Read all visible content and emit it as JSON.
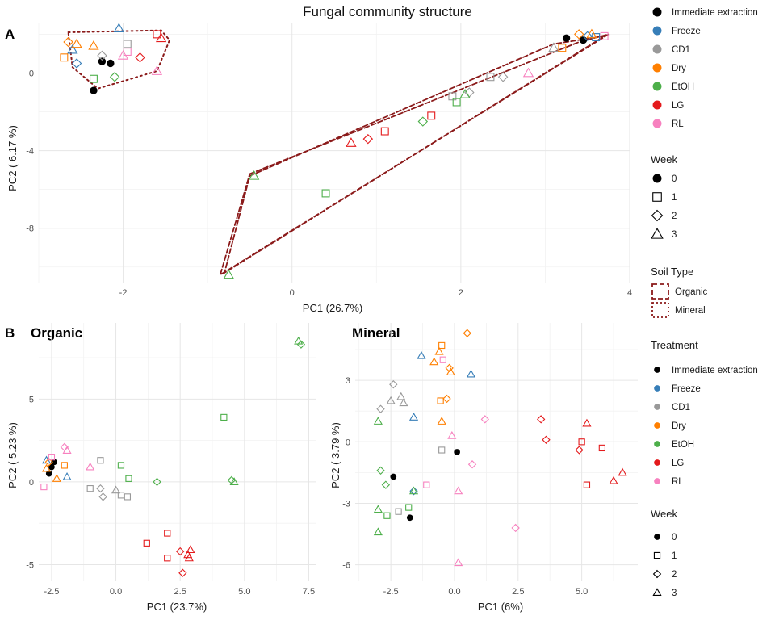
{
  "chart_data": [
    {
      "panel": "A",
      "type": "scatter",
      "title": "Fungal community structure",
      "xlabel": "PC1 (26.7%)",
      "ylabel": "PC2  ( 6.17 %)",
      "xlim": [
        -3.0,
        4.0
      ],
      "ylim": [
        -10.8,
        2.6
      ],
      "xticks": [
        -2,
        0,
        2,
        4
      ],
      "yticks": [
        0,
        -4,
        -8
      ],
      "hulls": [
        {
          "soil": "Mineral",
          "style": "dotted",
          "points": [
            [
              -2.65,
              2.1
            ],
            [
              -1.55,
              2.2
            ],
            [
              -1.45,
              1.7
            ],
            [
              -1.6,
              0.1
            ],
            [
              -2.3,
              -0.8
            ],
            [
              -2.6,
              0.3
            ]
          ]
        },
        {
          "soil": "Organic",
          "style": "dashed",
          "points": [
            [
              -0.5,
              -5.2
            ],
            [
              3.4,
              1.6
            ],
            [
              3.75,
              2.0
            ],
            [
              -0.85,
              -10.4
            ]
          ]
        },
        {
          "soil": "Organic",
          "style": "dashed",
          "points": [
            [
              -0.5,
              -5.3
            ],
            [
              3.1,
              1.5
            ],
            [
              3.7,
              1.9
            ],
            [
              -0.8,
              -10.3
            ]
          ]
        }
      ],
      "points": [
        {
          "x": 3.25,
          "y": 1.8,
          "t": "Immediate extraction",
          "w": 0
        },
        {
          "x": 3.45,
          "y": 1.7,
          "t": "Immediate extraction",
          "w": 0
        },
        {
          "x": -2.25,
          "y": 0.6,
          "t": "Immediate extraction",
          "w": 0
        },
        {
          "x": -2.15,
          "y": 0.5,
          "t": "Immediate extraction",
          "w": 0
        },
        {
          "x": -2.35,
          "y": -0.9,
          "t": "Immediate extraction",
          "w": 0
        },
        {
          "x": 3.5,
          "y": 1.9,
          "t": "Freeze",
          "w": 2
        },
        {
          "x": 3.6,
          "y": 1.85,
          "t": "Freeze",
          "w": 1
        },
        {
          "x": -2.05,
          "y": 2.3,
          "t": "Freeze",
          "w": 3
        },
        {
          "x": -2.55,
          "y": 0.5,
          "t": "Freeze",
          "w": 2
        },
        {
          "x": -2.6,
          "y": 1.2,
          "t": "Freeze",
          "w": 3
        },
        {
          "x": 2.35,
          "y": -0.2,
          "t": "CD1",
          "w": 1
        },
        {
          "x": 2.5,
          "y": -0.2,
          "t": "CD1",
          "w": 2
        },
        {
          "x": 1.9,
          "y": -1.2,
          "t": "CD1",
          "w": 1
        },
        {
          "x": 2.1,
          "y": -1.0,
          "t": "CD1",
          "w": 2
        },
        {
          "x": 3.1,
          "y": 1.3,
          "t": "CD1",
          "w": 3
        },
        {
          "x": -1.95,
          "y": 1.5,
          "t": "CD1",
          "w": 1
        },
        {
          "x": -2.25,
          "y": 0.9,
          "t": "CD1",
          "w": 2
        },
        {
          "x": 3.4,
          "y": 2.0,
          "t": "Dry",
          "w": 2
        },
        {
          "x": 3.55,
          "y": 2.0,
          "t": "Dry",
          "w": 3
        },
        {
          "x": 3.2,
          "y": 1.3,
          "t": "Dry",
          "w": 1
        },
        {
          "x": -2.65,
          "y": 1.6,
          "t": "Dry",
          "w": 2
        },
        {
          "x": -2.55,
          "y": 1.5,
          "t": "Dry",
          "w": 3
        },
        {
          "x": -2.7,
          "y": 0.8,
          "t": "Dry",
          "w": 1
        },
        {
          "x": -2.35,
          "y": 1.4,
          "t": "Dry",
          "w": 3
        },
        {
          "x": 1.55,
          "y": -2.5,
          "t": "EtOH",
          "w": 2
        },
        {
          "x": 1.95,
          "y": -1.5,
          "t": "EtOH",
          "w": 1
        },
        {
          "x": 0.4,
          "y": -6.2,
          "t": "EtOH",
          "w": 1
        },
        {
          "x": -0.45,
          "y": -5.3,
          "t": "EtOH",
          "w": 3
        },
        {
          "x": -0.75,
          "y": -10.4,
          "t": "EtOH",
          "w": 3
        },
        {
          "x": 2.05,
          "y": -1.1,
          "t": "EtOH",
          "w": 3
        },
        {
          "x": -2.35,
          "y": -0.3,
          "t": "EtOH",
          "w": 1
        },
        {
          "x": -2.1,
          "y": -0.2,
          "t": "EtOH",
          "w": 2
        },
        {
          "x": 0.7,
          "y": -3.6,
          "t": "LG",
          "w": 3
        },
        {
          "x": 0.9,
          "y": -3.4,
          "t": "LG",
          "w": 2
        },
        {
          "x": 1.1,
          "y": -3.0,
          "t": "LG",
          "w": 1
        },
        {
          "x": 1.65,
          "y": -2.2,
          "t": "LG",
          "w": 1
        },
        {
          "x": -1.8,
          "y": 0.8,
          "t": "LG",
          "w": 2
        },
        {
          "x": -1.6,
          "y": 2.0,
          "t": "LG",
          "w": 1
        },
        {
          "x": -1.55,
          "y": 1.8,
          "t": "LG",
          "w": 3
        },
        {
          "x": 2.8,
          "y": 0.0,
          "t": "RL",
          "w": 3
        },
        {
          "x": 3.7,
          "y": 1.9,
          "t": "RL",
          "w": 1
        },
        {
          "x": -1.95,
          "y": 1.1,
          "t": "RL",
          "w": 1
        },
        {
          "x": -1.6,
          "y": 0.1,
          "t": "RL",
          "w": 3
        },
        {
          "x": -2.0,
          "y": 0.9,
          "t": "RL",
          "w": 3
        }
      ]
    },
    {
      "panel": "B",
      "subtitle": "Organic",
      "type": "scatter",
      "xlabel": "PC1 (23.7%)",
      "ylabel": "PC2  ( 5.23 %)",
      "xlim": [
        -3.0,
        7.8
      ],
      "ylim": [
        -6.0,
        9.6
      ],
      "xticks": [
        -2.5,
        0.0,
        2.5,
        5.0,
        7.5
      ],
      "yticks": [
        5,
        0,
        -5
      ],
      "points": [
        {
          "x": -2.4,
          "y": 1.2,
          "t": "Immediate extraction",
          "w": 0
        },
        {
          "x": -2.5,
          "y": 0.9,
          "t": "Immediate extraction",
          "w": 0
        },
        {
          "x": -2.6,
          "y": 0.5,
          "t": "Immediate extraction",
          "w": 0
        },
        {
          "x": -1.9,
          "y": 0.3,
          "t": "Freeze",
          "w": 3
        },
        {
          "x": -2.7,
          "y": 1.3,
          "t": "Freeze",
          "w": 3
        },
        {
          "x": -0.6,
          "y": 1.3,
          "t": "CD1",
          "w": 1
        },
        {
          "x": -1.0,
          "y": -0.4,
          "t": "CD1",
          "w": 1
        },
        {
          "x": -0.6,
          "y": -0.4,
          "t": "CD1",
          "w": 2
        },
        {
          "x": -0.5,
          "y": -0.9,
          "t": "CD1",
          "w": 2
        },
        {
          "x": 0.0,
          "y": -0.5,
          "t": "CD1",
          "w": 3
        },
        {
          "x": 0.2,
          "y": -0.8,
          "t": "CD1",
          "w": 1
        },
        {
          "x": 0.45,
          "y": -0.9,
          "t": "CD1",
          "w": 1
        },
        {
          "x": -2.6,
          "y": 1.2,
          "t": "Dry",
          "w": 2
        },
        {
          "x": -2.7,
          "y": 0.8,
          "t": "Dry",
          "w": 3
        },
        {
          "x": -2.3,
          "y": 0.2,
          "t": "Dry",
          "w": 3
        },
        {
          "x": -2.0,
          "y": 1.0,
          "t": "Dry",
          "w": 1
        },
        {
          "x": 4.2,
          "y": 3.9,
          "t": "EtOH",
          "w": 1
        },
        {
          "x": 7.1,
          "y": 8.5,
          "t": "EtOH",
          "w": 3
        },
        {
          "x": 7.2,
          "y": 8.3,
          "t": "EtOH",
          "w": 2
        },
        {
          "x": 4.5,
          "y": 0.1,
          "t": "EtOH",
          "w": 2
        },
        {
          "x": 4.6,
          "y": 0.0,
          "t": "EtOH",
          "w": 3
        },
        {
          "x": 0.2,
          "y": 1.0,
          "t": "EtOH",
          "w": 1
        },
        {
          "x": 0.5,
          "y": 0.2,
          "t": "EtOH",
          "w": 1
        },
        {
          "x": 1.6,
          "y": 0.0,
          "t": "EtOH",
          "w": 2
        },
        {
          "x": 1.2,
          "y": -3.7,
          "t": "LG",
          "w": 1
        },
        {
          "x": 2.0,
          "y": -3.1,
          "t": "LG",
          "w": 1
        },
        {
          "x": 2.0,
          "y": -4.6,
          "t": "LG",
          "w": 1
        },
        {
          "x": 2.5,
          "y": -4.2,
          "t": "LG",
          "w": 2
        },
        {
          "x": 2.6,
          "y": -5.5,
          "t": "LG",
          "w": 2
        },
        {
          "x": 2.8,
          "y": -4.4,
          "t": "LG",
          "w": 3
        },
        {
          "x": 2.9,
          "y": -4.1,
          "t": "LG",
          "w": 3
        },
        {
          "x": 2.85,
          "y": -4.6,
          "t": "LG",
          "w": 3
        },
        {
          "x": -2.8,
          "y": -0.3,
          "t": "RL",
          "w": 1
        },
        {
          "x": -2.0,
          "y": 2.1,
          "t": "RL",
          "w": 2
        },
        {
          "x": -1.9,
          "y": 1.9,
          "t": "RL",
          "w": 3
        },
        {
          "x": -1.0,
          "y": 0.9,
          "t": "RL",
          "w": 3
        },
        {
          "x": -2.5,
          "y": 1.5,
          "t": "RL",
          "w": 1
        }
      ]
    },
    {
      "panel": "B",
      "subtitle": "Mineral",
      "type": "scatter",
      "xlabel": "PC1 (6%)",
      "ylabel": "PC2  ( 3.79 %)",
      "xlim": [
        -3.9,
        7.2
      ],
      "ylim": [
        -6.8,
        5.8
      ],
      "xticks": [
        -2.5,
        0.0,
        2.5,
        5.0
      ],
      "yticks": [
        3,
        0,
        -3,
        -6
      ],
      "points": [
        {
          "x": 0.1,
          "y": -0.5,
          "t": "Immediate extraction",
          "w": 0
        },
        {
          "x": -2.4,
          "y": -1.7,
          "t": "Immediate extraction",
          "w": 0
        },
        {
          "x": -1.75,
          "y": -3.7,
          "t": "Immediate extraction",
          "w": 0
        },
        {
          "x": -1.3,
          "y": 4.2,
          "t": "Freeze",
          "w": 3
        },
        {
          "x": 0.65,
          "y": 3.3,
          "t": "Freeze",
          "w": 3
        },
        {
          "x": -1.6,
          "y": 1.2,
          "t": "Freeze",
          "w": 3
        },
        {
          "x": -1.6,
          "y": -2.4,
          "t": "Freeze",
          "w": 2
        },
        {
          "x": -2.4,
          "y": 2.8,
          "t": "CD1",
          "w": 2
        },
        {
          "x": -2.5,
          "y": 2.0,
          "t": "CD1",
          "w": 3
        },
        {
          "x": -2.1,
          "y": 2.2,
          "t": "CD1",
          "w": 3
        },
        {
          "x": -2.0,
          "y": 1.9,
          "t": "CD1",
          "w": 3
        },
        {
          "x": -2.9,
          "y": 1.6,
          "t": "CD1",
          "w": 2
        },
        {
          "x": -0.5,
          "y": -0.4,
          "t": "CD1",
          "w": 1
        },
        {
          "x": -2.2,
          "y": -3.4,
          "t": "CD1",
          "w": 1
        },
        {
          "x": -0.5,
          "y": 4.7,
          "t": "Dry",
          "w": 1
        },
        {
          "x": -0.6,
          "y": 4.4,
          "t": "Dry",
          "w": 3
        },
        {
          "x": -0.8,
          "y": 3.9,
          "t": "Dry",
          "w": 3
        },
        {
          "x": -0.2,
          "y": 3.6,
          "t": "Dry",
          "w": 2
        },
        {
          "x": -0.15,
          "y": 3.4,
          "t": "Dry",
          "w": 3
        },
        {
          "x": 0.5,
          "y": 5.3,
          "t": "Dry",
          "w": 2
        },
        {
          "x": -0.55,
          "y": 2.0,
          "t": "Dry",
          "w": 1
        },
        {
          "x": -0.3,
          "y": 2.1,
          "t": "Dry",
          "w": 2
        },
        {
          "x": -0.5,
          "y": 1.0,
          "t": "Dry",
          "w": 3
        },
        {
          "x": -3.0,
          "y": 1.0,
          "t": "EtOH",
          "w": 3
        },
        {
          "x": -2.9,
          "y": -1.4,
          "t": "EtOH",
          "w": 2
        },
        {
          "x": -2.7,
          "y": -2.1,
          "t": "EtOH",
          "w": 2
        },
        {
          "x": -3.0,
          "y": -3.3,
          "t": "EtOH",
          "w": 3
        },
        {
          "x": -3.0,
          "y": -4.4,
          "t": "EtOH",
          "w": 3
        },
        {
          "x": -2.65,
          "y": -3.6,
          "t": "EtOH",
          "w": 1
        },
        {
          "x": -1.8,
          "y": -3.2,
          "t": "EtOH",
          "w": 1
        },
        {
          "x": -1.6,
          "y": -2.4,
          "t": "EtOH",
          "w": 3
        },
        {
          "x": 3.4,
          "y": 1.1,
          "t": "LG",
          "w": 2
        },
        {
          "x": 3.6,
          "y": 0.1,
          "t": "LG",
          "w": 2
        },
        {
          "x": 5.0,
          "y": 0.0,
          "t": "LG",
          "w": 1
        },
        {
          "x": 5.2,
          "y": 0.9,
          "t": "LG",
          "w": 3
        },
        {
          "x": 4.9,
          "y": -0.4,
          "t": "LG",
          "w": 2
        },
        {
          "x": 5.8,
          "y": -0.3,
          "t": "LG",
          "w": 1
        },
        {
          "x": 6.6,
          "y": -1.5,
          "t": "LG",
          "w": 3
        },
        {
          "x": 6.25,
          "y": -1.9,
          "t": "LG",
          "w": 3
        },
        {
          "x": 5.2,
          "y": -2.1,
          "t": "LG",
          "w": 1
        },
        {
          "x": -0.45,
          "y": 4.0,
          "t": "RL",
          "w": 1
        },
        {
          "x": 1.2,
          "y": 1.1,
          "t": "RL",
          "w": 2
        },
        {
          "x": -0.1,
          "y": 0.3,
          "t": "RL",
          "w": 3
        },
        {
          "x": 0.7,
          "y": -1.1,
          "t": "RL",
          "w": 2
        },
        {
          "x": -1.1,
          "y": -2.1,
          "t": "RL",
          "w": 1
        },
        {
          "x": 0.15,
          "y": -2.4,
          "t": "RL",
          "w": 3
        },
        {
          "x": 2.4,
          "y": -4.2,
          "t": "RL",
          "w": 2
        },
        {
          "x": 0.15,
          "y": -5.9,
          "t": "RL",
          "w": 3
        }
      ]
    }
  ],
  "panel_tags": {
    "a": "A",
    "b": "B"
  },
  "legend": {
    "treatment_entries": [
      "Immediate extraction",
      "Freeze",
      "CD1",
      "Dry",
      "EtOH",
      "LG",
      "RL"
    ],
    "treatment_title": "Treatment",
    "week_title": "Week",
    "weeks": [
      "0",
      "1",
      "2",
      "3"
    ],
    "soil_title": "Soil Type",
    "soil_types": [
      "Organic",
      "Mineral"
    ]
  },
  "colors": {
    "Immediate extraction": "#000000",
    "Freeze": "#377EB8",
    "CD1": "#999999",
    "Dry": "#FF7F00",
    "EtOH": "#4DAF4A",
    "LG": "#E41A1C",
    "RL": "#F781BF",
    "hull": "#8B1A1A"
  }
}
